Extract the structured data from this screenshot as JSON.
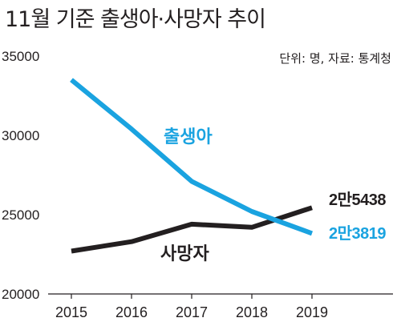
{
  "title": "11월 기준 출생아·사망자 추이",
  "source_note": "단위: 명, 자료: 통계청",
  "colors": {
    "births": "#1aa3e0",
    "deaths": "#231f20"
  },
  "chart_data": {
    "type": "line",
    "title": "11월 기준 출생아·사망자 추이",
    "x": [
      "2015",
      "2016",
      "2017",
      "2018",
      "2019"
    ],
    "yticks": [
      "35000",
      "30000",
      "25000",
      "20000"
    ],
    "ylim": [
      20000,
      35000
    ],
    "grid": false,
    "series": [
      {
        "name": "출생아",
        "values": [
          33500,
          30400,
          27100,
          25200,
          23819
        ],
        "end_label": "2만3819"
      },
      {
        "name": "사망자",
        "values": [
          22700,
          23300,
          24400,
          24200,
          25438
        ],
        "end_label": "2만5438"
      }
    ]
  }
}
